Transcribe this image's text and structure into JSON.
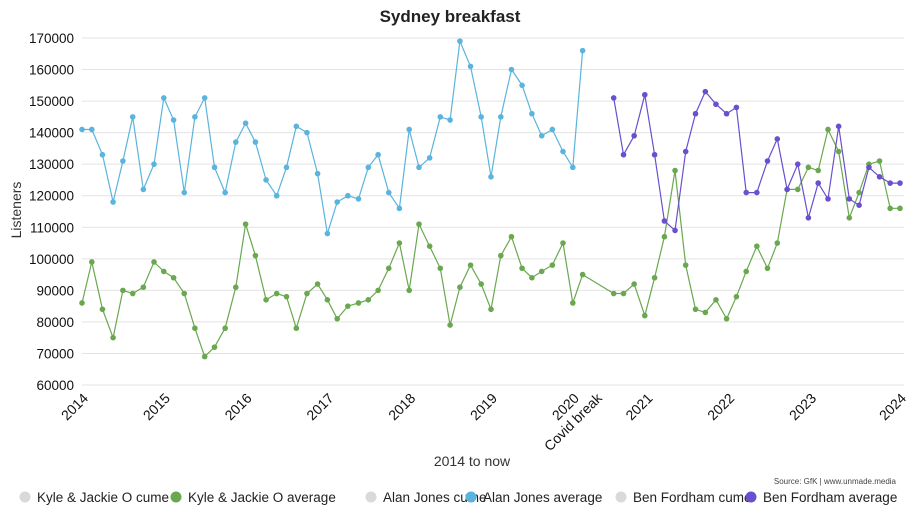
{
  "chart_data": {
    "type": "line",
    "title": "Sydney breakfast",
    "xlabel": "2014 to now",
    "ylabel": "Listeners",
    "source": "Source: GfK | www.unmade.media",
    "ylim": [
      60000,
      170000
    ],
    "yticks": [
      "170000",
      "160000",
      "150000",
      "140000",
      "130000",
      "120000",
      "110000",
      "100000",
      "90000",
      "80000",
      "70000",
      "60000"
    ],
    "xticks": [
      "2014",
      "2015",
      "2016",
      "2017",
      "2018",
      "2019",
      "2020",
      "Covid break",
      "2021",
      "2022",
      "2023",
      "2024"
    ],
    "grid": true,
    "legend_position": "bottom",
    "legend": [
      {
        "label": "Kyle & Jackie O cume",
        "color": "#d9d9d9"
      },
      {
        "label": "Kyle & Jackie O average",
        "color": "#6aa84f"
      },
      {
        "label": "Alan Jones cume",
        "color": "#d9d9d9"
      },
      {
        "label": "Alan Jones average",
        "color": "#5ab4dd"
      },
      {
        "label": "Ben Fordham cume",
        "color": "#d9d9d9"
      },
      {
        "label": "Ben Fordham average",
        "color": "#6a4fcf"
      }
    ],
    "series": [
      {
        "name": "Alan Jones average",
        "color": "#5ab4dd",
        "x": [
          0,
          0.12,
          0.25,
          0.38,
          0.5,
          0.62,
          0.75,
          0.88,
          1.0,
          1.12,
          1.25,
          1.38,
          1.5,
          1.62,
          1.75,
          1.88,
          2.0,
          2.12,
          2.25,
          2.38,
          2.5,
          2.62,
          2.75,
          2.88,
          3.0,
          3.12,
          3.25,
          3.38,
          3.5,
          3.62,
          3.75,
          3.88,
          4.0,
          4.12,
          4.25,
          4.38,
          4.5,
          4.62,
          4.75,
          4.88,
          5.0,
          5.12,
          5.25,
          5.38,
          5.5,
          5.62,
          5.75,
          5.88,
          6.0,
          6.12
        ],
        "values": [
          141000,
          141000,
          133000,
          118000,
          131000,
          145000,
          122000,
          130000,
          151000,
          144000,
          121000,
          145000,
          151000,
          129000,
          121000,
          137000,
          143000,
          137000,
          125000,
          120000,
          129000,
          142000,
          140000,
          127000,
          108000,
          118000,
          120000,
          119000,
          129000,
          133000,
          121000,
          116000,
          141000,
          129000,
          132000,
          145000,
          144000,
          169000,
          161000,
          145000,
          126000,
          145000,
          160000,
          155000,
          146000,
          139000,
          141000,
          134000,
          129000,
          166000
        ]
      },
      {
        "name": "Kyle & Jackie O average",
        "color": "#6aa84f",
        "x": [
          0,
          0.12,
          0.25,
          0.38,
          0.5,
          0.62,
          0.75,
          0.88,
          1.0,
          1.12,
          1.25,
          1.38,
          1.5,
          1.62,
          1.75,
          1.88,
          2.0,
          2.12,
          2.25,
          2.38,
          2.5,
          2.62,
          2.75,
          2.88,
          3.0,
          3.12,
          3.25,
          3.38,
          3.5,
          3.62,
          3.75,
          3.88,
          4.0,
          4.12,
          4.25,
          4.38,
          4.5,
          4.62,
          4.75,
          4.88,
          5.0,
          5.12,
          5.25,
          5.38,
          5.5,
          5.62,
          5.75,
          5.88,
          6.0,
          6.12,
          6.5,
          6.62,
          6.75,
          6.88,
          7.0,
          7.12,
          7.25,
          7.38,
          7.5,
          7.62,
          7.75,
          7.88,
          8.0,
          8.12,
          8.25,
          8.38,
          8.5,
          8.62,
          8.75,
          8.88,
          9.0,
          9.12,
          9.25,
          9.38,
          9.5,
          9.62,
          9.75,
          9.88,
          10.0
        ],
        "values": [
          86000,
          99000,
          84000,
          75000,
          90000,
          89000,
          91000,
          99000,
          96000,
          94000,
          89000,
          78000,
          69000,
          72000,
          78000,
          91000,
          111000,
          101000,
          87000,
          89000,
          88000,
          78000,
          89000,
          92000,
          87000,
          81000,
          85000,
          86000,
          87000,
          90000,
          97000,
          105000,
          90000,
          111000,
          104000,
          97000,
          79000,
          91000,
          98000,
          92000,
          84000,
          101000,
          107000,
          97000,
          94000,
          96000,
          98000,
          105000,
          86000,
          95000,
          89000,
          89000,
          92000,
          82000,
          94000,
          107000,
          128000,
          98000,
          84000,
          83000,
          87000,
          81000,
          88000,
          96000,
          104000,
          97000,
          105000,
          122000,
          122000,
          129000,
          128000,
          141000,
          134000,
          113000,
          121000,
          130000,
          131000,
          116000,
          116000
        ]
      },
      {
        "name": "Ben Fordham average",
        "color": "#6a4fcf",
        "x": [
          6.5,
          6.62,
          6.75,
          6.88,
          7.0,
          7.12,
          7.25,
          7.38,
          7.5,
          7.62,
          7.75,
          7.88,
          8.0,
          8.12,
          8.25,
          8.38,
          8.5,
          8.62,
          8.75,
          8.88,
          9.0,
          9.12,
          9.25,
          9.38,
          9.5,
          9.62,
          9.75,
          9.88,
          10.0
        ],
        "values": [
          151000,
          133000,
          139000,
          152000,
          133000,
          112000,
          109000,
          134000,
          146000,
          153000,
          149000,
          146000,
          148000,
          121000,
          121000,
          131000,
          138000,
          122000,
          130000,
          113000,
          124000,
          119000,
          142000,
          119000,
          117000,
          129000,
          126000,
          124000,
          124000
        ]
      }
    ]
  }
}
